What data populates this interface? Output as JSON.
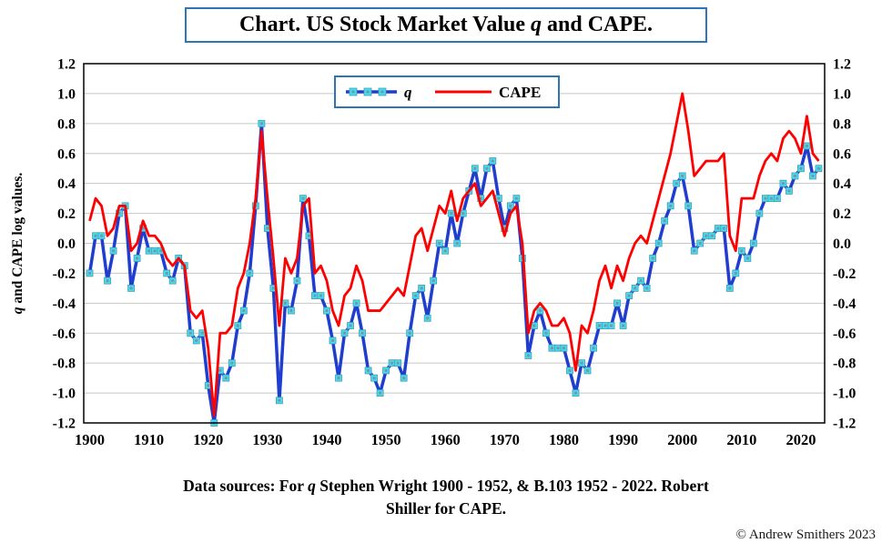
{
  "title_parts": [
    {
      "t": "Chart. US Stock Market Value "
    },
    {
      "t": "q",
      "i": true
    },
    {
      "t": " and CAPE."
    }
  ],
  "y_axis_label_parts": [
    {
      "t": "q",
      "i": true
    },
    {
      "t": " and CAPE log values."
    }
  ],
  "legend": {
    "q_label": "q",
    "cape_label": "CAPE"
  },
  "caption_lines": [
    [
      {
        "t": "Data sources: For "
      },
      {
        "t": "q",
        "i": true
      },
      {
        "t": " Stephen Wright 1900 - 1952, & B.103 1952 - 2022. Robert"
      }
    ],
    [
      {
        "t": "Shiller for CAPE."
      }
    ]
  ],
  "copyright": "© Andrew Smithers 2023",
  "colors": {
    "accent_blue": "#2e75b6",
    "grid": "#c6c6c6",
    "plot_border": "#000000",
    "q_line": "#1f3ecf",
    "q_marker_fill": "#3fe0ef",
    "q_marker_inner": "#7b95a6",
    "cape_line": "#ff0000"
  },
  "chart_data": {
    "type": "line",
    "title": "Chart. US Stock Market Value q and CAPE.",
    "ylabel": "q and CAPE log values.",
    "x_range": [
      1899,
      2024
    ],
    "y_range": [
      -1.2,
      1.2
    ],
    "x_ticks": [
      1900,
      1910,
      1920,
      1930,
      1940,
      1950,
      1960,
      1970,
      1980,
      1990,
      2000,
      2010,
      2020
    ],
    "y_ticks": [
      "1.2",
      "1.0",
      "0.8",
      "0.6",
      "0.4",
      "0.2",
      "0.0",
      "-0.2",
      "-0.4",
      "-0.6",
      "-0.8",
      "-1.0",
      "-1.2"
    ],
    "grid": "horizontal",
    "legend_position": "top-center-inside",
    "x_start": 1900,
    "x_step": 1,
    "series": [
      {
        "name": "q",
        "style": "line-with-square-markers",
        "values": [
          -0.2,
          0.05,
          0.05,
          -0.25,
          -0.05,
          0.2,
          0.25,
          -0.3,
          -0.1,
          0.1,
          -0.05,
          -0.05,
          -0.05,
          -0.2,
          -0.25,
          -0.1,
          -0.15,
          -0.6,
          -0.65,
          -0.6,
          -0.95,
          -1.2,
          -0.85,
          -0.9,
          -0.8,
          -0.55,
          -0.45,
          -0.2,
          0.25,
          0.8,
          0.1,
          -0.3,
          -1.05,
          -0.4,
          -0.45,
          -0.25,
          0.3,
          0.05,
          -0.35,
          -0.35,
          -0.45,
          -0.65,
          -0.9,
          -0.6,
          -0.55,
          -0.4,
          -0.6,
          -0.85,
          -0.9,
          -1.0,
          -0.85,
          -0.8,
          -0.8,
          -0.9,
          -0.6,
          -0.35,
          -0.3,
          -0.5,
          -0.25,
          0.0,
          -0.05,
          0.2,
          0.0,
          0.2,
          0.35,
          0.5,
          0.3,
          0.5,
          0.55,
          0.3,
          0.1,
          0.25,
          0.3,
          -0.1,
          -0.75,
          -0.55,
          -0.45,
          -0.6,
          -0.7,
          -0.7,
          -0.7,
          -0.85,
          -1.0,
          -0.8,
          -0.85,
          -0.7,
          -0.55,
          -0.55,
          -0.55,
          -0.4,
          -0.55,
          -0.35,
          -0.3,
          -0.25,
          -0.3,
          -0.1,
          0.0,
          0.15,
          0.25,
          0.4,
          0.45,
          0.25,
          -0.05,
          0.0,
          0.05,
          0.05,
          0.1,
          0.1,
          -0.3,
          -0.2,
          -0.05,
          -0.1,
          0.0,
          0.2,
          0.3,
          0.3,
          0.3,
          0.4,
          0.35,
          0.45,
          0.5,
          0.65,
          0.45,
          0.5
        ]
      },
      {
        "name": "CAPE",
        "style": "line",
        "values": [
          0.15,
          0.3,
          0.25,
          0.05,
          0.1,
          0.25,
          0.25,
          -0.05,
          0.0,
          0.15,
          0.05,
          0.05,
          0.0,
          -0.1,
          -0.15,
          -0.1,
          -0.15,
          -0.45,
          -0.5,
          -0.45,
          -0.7,
          -1.15,
          -0.6,
          -0.6,
          -0.55,
          -0.3,
          -0.2,
          0.0,
          0.3,
          0.75,
          0.3,
          -0.1,
          -0.55,
          -0.1,
          -0.2,
          -0.1,
          0.25,
          0.3,
          -0.2,
          -0.15,
          -0.25,
          -0.45,
          -0.55,
          -0.35,
          -0.3,
          -0.15,
          -0.25,
          -0.45,
          -0.45,
          -0.45,
          -0.4,
          -0.35,
          -0.3,
          -0.35,
          -0.15,
          0.05,
          0.1,
          -0.05,
          0.1,
          0.25,
          0.2,
          0.35,
          0.15,
          0.3,
          0.35,
          0.4,
          0.25,
          0.3,
          0.35,
          0.2,
          0.05,
          0.2,
          0.25,
          0.0,
          -0.6,
          -0.45,
          -0.4,
          -0.45,
          -0.55,
          -0.55,
          -0.5,
          -0.6,
          -0.85,
          -0.55,
          -0.6,
          -0.45,
          -0.25,
          -0.15,
          -0.3,
          -0.15,
          -0.25,
          -0.1,
          0.0,
          0.05,
          0.0,
          0.15,
          0.3,
          0.45,
          0.6,
          0.8,
          1.0,
          0.75,
          0.45,
          0.5,
          0.55,
          0.55,
          0.55,
          0.6,
          0.05,
          -0.05,
          0.3,
          0.3,
          0.3,
          0.45,
          0.55,
          0.6,
          0.55,
          0.7,
          0.75,
          0.7,
          0.6,
          0.85,
          0.6,
          0.55
        ]
      }
    ]
  }
}
